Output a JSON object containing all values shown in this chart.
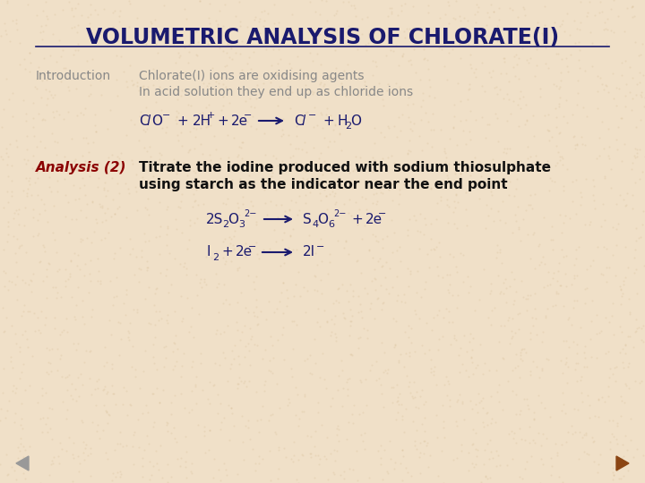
{
  "title": "VOLUMETRIC ANALYSIS OF CHLORATE(I)",
  "title_color": "#1a1a6e",
  "title_fontsize": 17,
  "bg_color": "#f0e0c8",
  "intro_label": "Introduction",
  "intro_label_color": "#888888",
  "intro_label_fontsize": 10,
  "intro_text_line1": "Chlorate(I) ions are oxidising agents",
  "intro_text_line2": "In acid solution they end up as chloride ions",
  "intro_text_color": "#888888",
  "intro_text_fontsize": 10,
  "analysis_label": "Analysis (2)",
  "analysis_label_color": "#8b0000",
  "analysis_label_fontsize": 11,
  "analysis_text_line1": "Titrate the iodine produced with sodium thiosulphate",
  "analysis_text_line2": "using starch as the indicator near the end point",
  "analysis_text_color": "#111111",
  "analysis_text_fontsize": 11,
  "eq_color": "#1a1a6e",
  "eq_fontsize": 11,
  "nav_left_color": "#999999",
  "nav_right_color": "#8b4513"
}
